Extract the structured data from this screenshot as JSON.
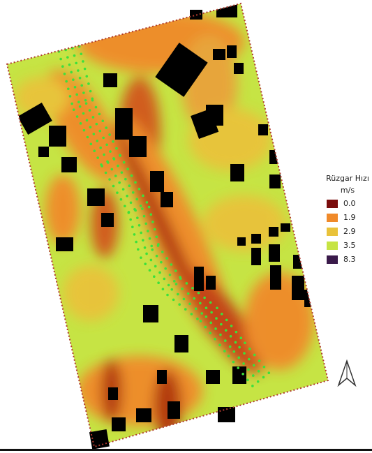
{
  "legend": {
    "title": "Rüzgar Hızı",
    "unit": "m/s",
    "items": [
      {
        "label": "0.0",
        "color": "#7a0c0c"
      },
      {
        "label": "1.9",
        "color": "#f08a2a"
      },
      {
        "label": "2.9",
        "color": "#e9c23a"
      },
      {
        "label": "3.5",
        "color": "#c6e444"
      },
      {
        "label": "8.3",
        "color": "#3a1a4a"
      }
    ]
  }
}
